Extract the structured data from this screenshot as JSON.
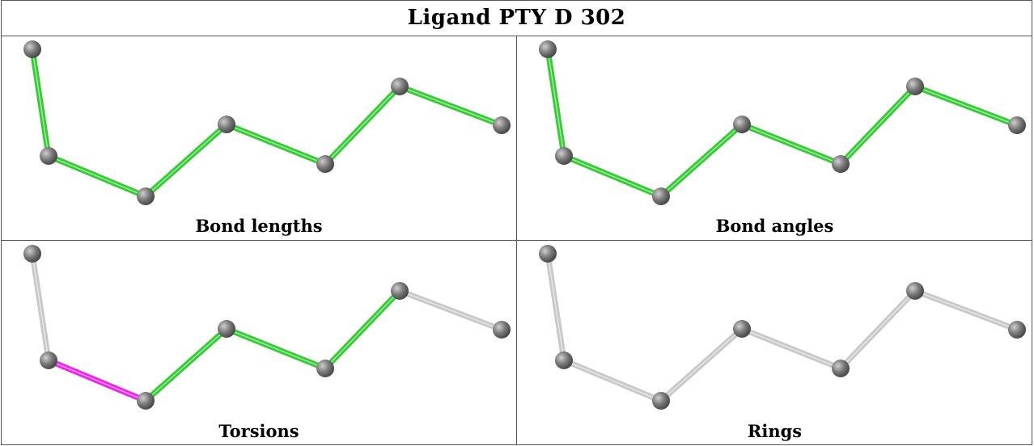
{
  "title": "Ligand PTY D 302",
  "colors": {
    "ok": "#33cc33",
    "outlier": "#ee22ee",
    "neutral": "#c8c8c8",
    "atom": "#7a7a7a"
  },
  "panels": [
    {
      "caption": "Bond lengths",
      "bond_colors": [
        "ok",
        "ok",
        "ok",
        "ok",
        "ok",
        "ok"
      ]
    },
    {
      "caption": "Bond angles",
      "bond_colors": [
        "ok",
        "ok",
        "ok",
        "ok",
        "ok",
        "ok"
      ]
    },
    {
      "caption": "Torsions",
      "bond_colors": [
        "neutral",
        "outlier",
        "ok",
        "ok",
        "ok",
        "neutral"
      ]
    },
    {
      "caption": "Rings",
      "bond_colors": [
        "neutral",
        "neutral",
        "neutral",
        "neutral",
        "neutral",
        "neutral"
      ]
    }
  ]
}
